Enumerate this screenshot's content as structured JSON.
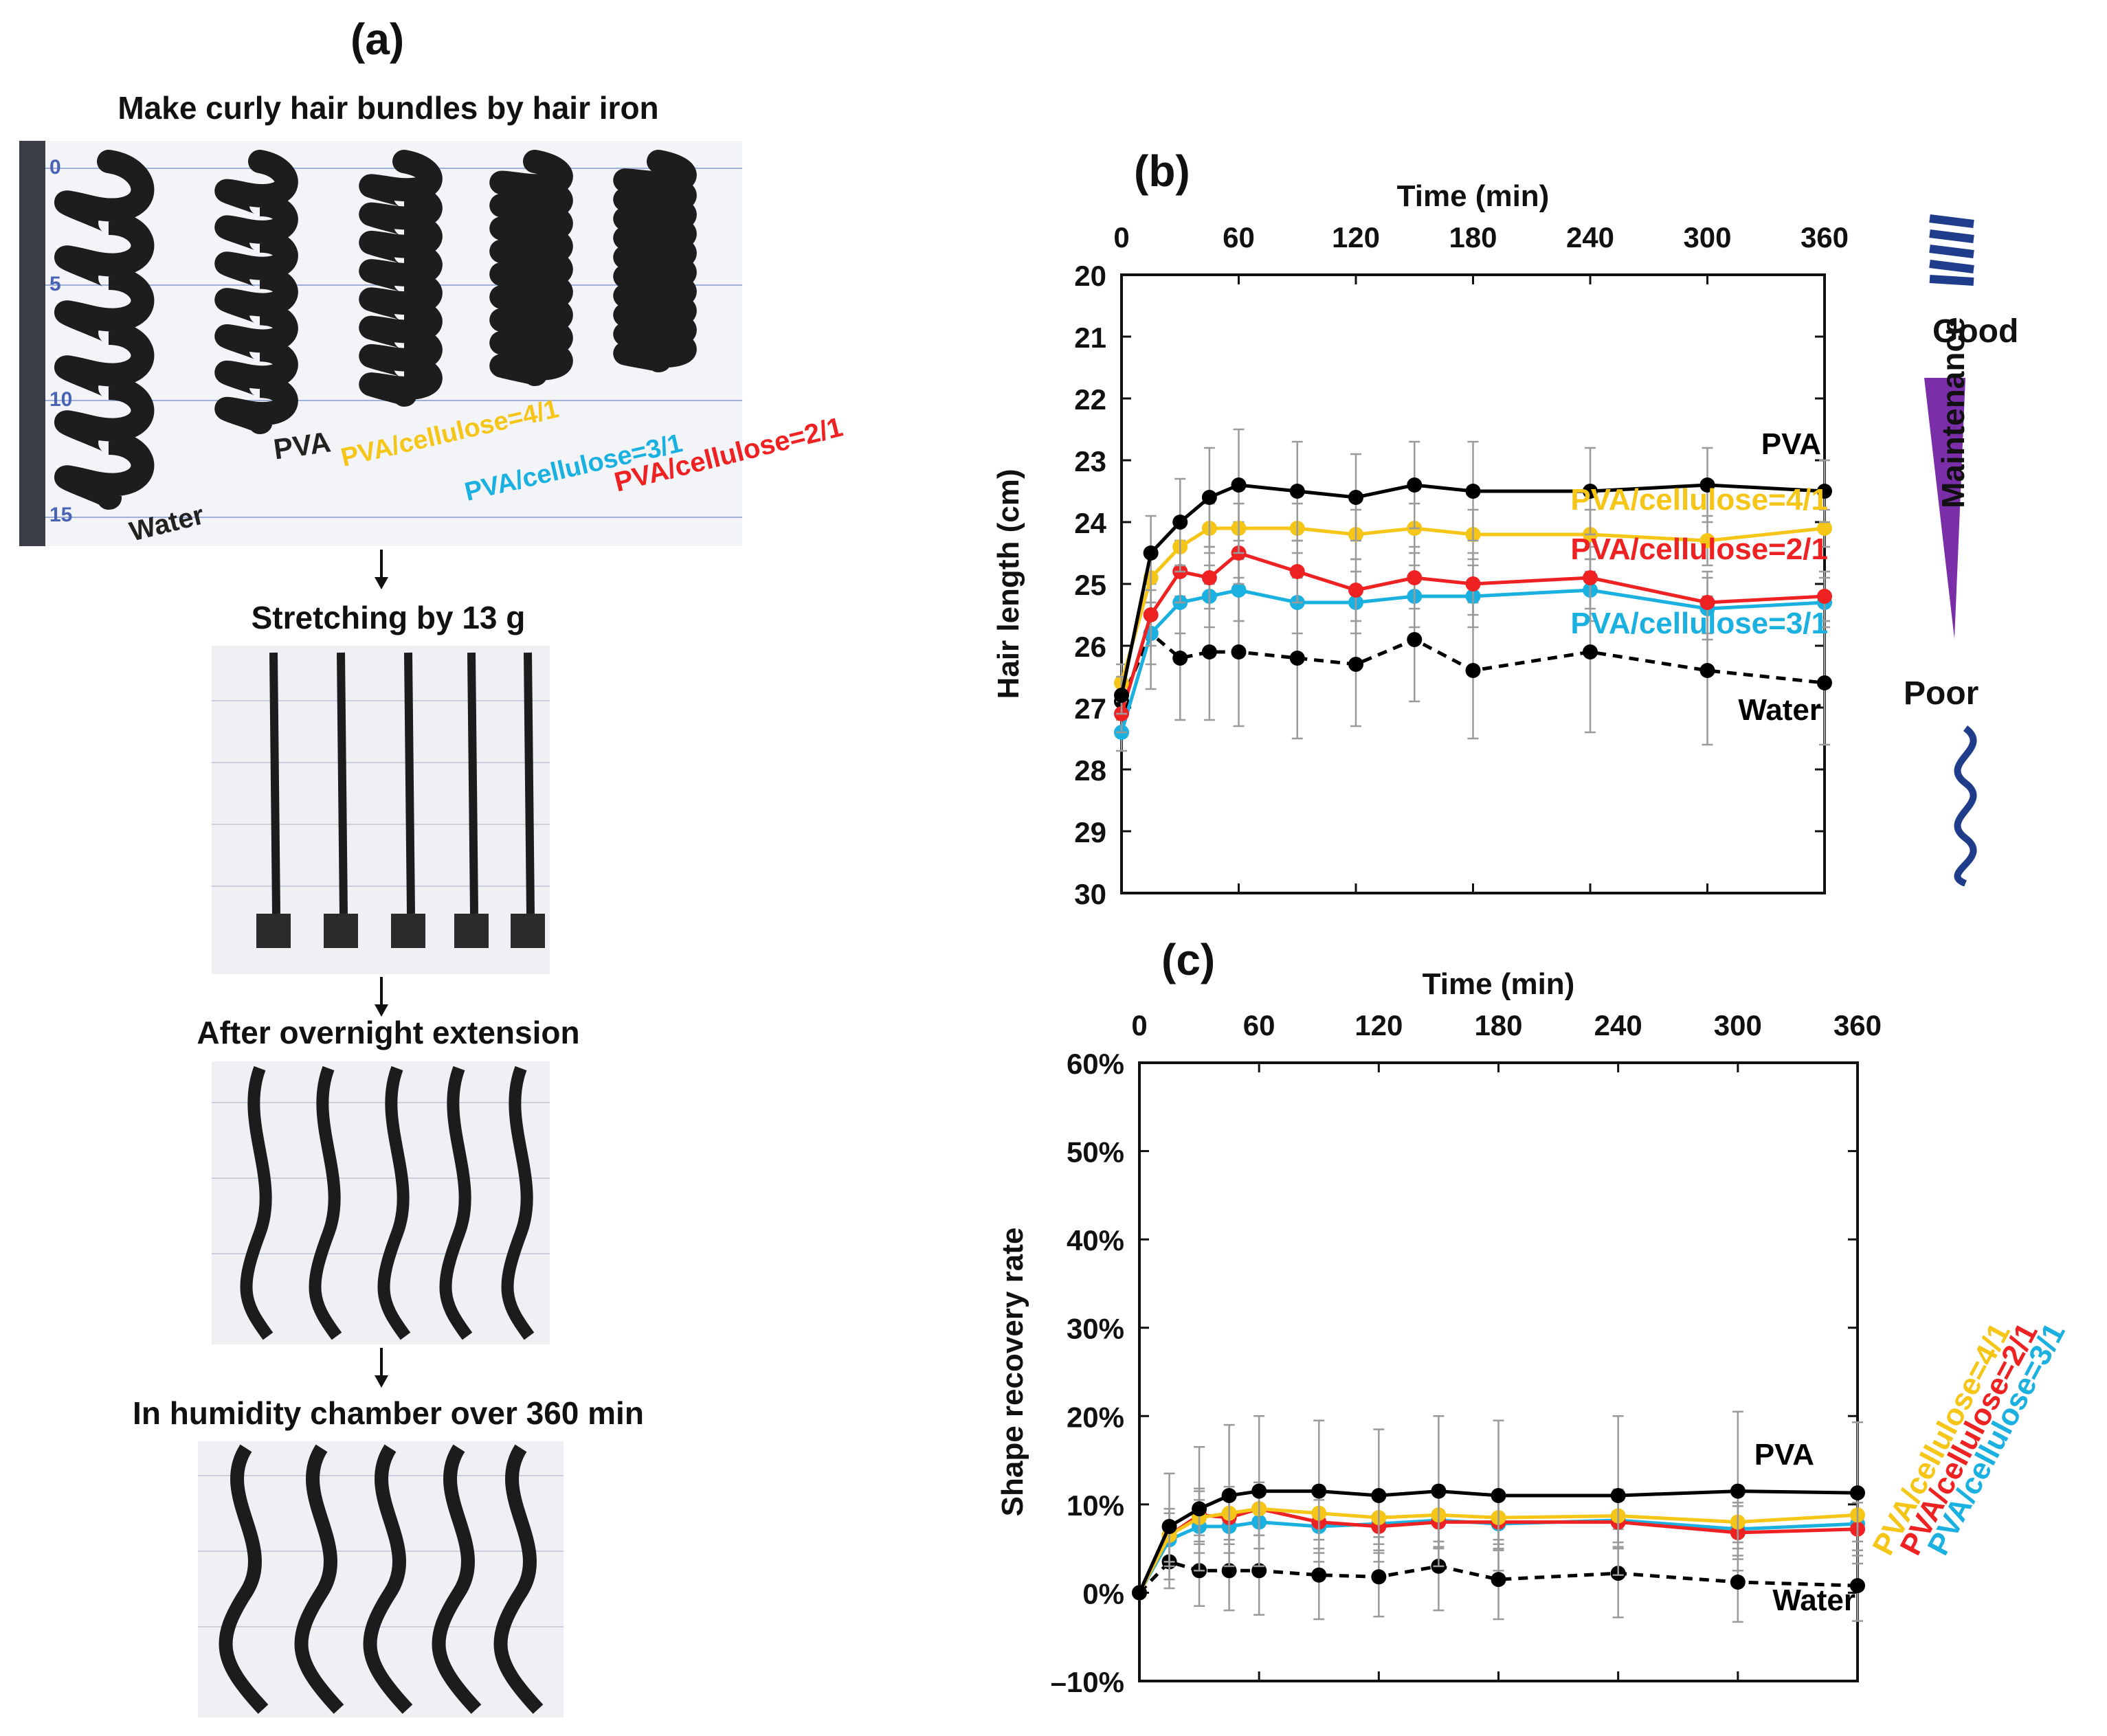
{
  "panel_a": {
    "label": "(a)",
    "steps": [
      "Make curly hair bundles by hair iron",
      "Stretching by 13 g",
      "After overnight extension",
      "In humidity chamber over 360 min"
    ],
    "ruler_marks": [
      "0",
      "5",
      "10",
      "15"
    ],
    "sample_labels": {
      "water": "Water",
      "pva": "PVA",
      "pc41": "PVA/cellulose=4/1",
      "pc31": "PVA/cellulose=3/1",
      "pc21": "PVA/cellulose=2/1"
    }
  },
  "panel_b": {
    "label": "(b)",
    "legend_scale": {
      "good": "Good",
      "maintenance": "Maintenance",
      "poor": "Poor"
    }
  },
  "panel_c": {
    "label": "(c)"
  },
  "colors": {
    "pva": "#000000",
    "water": "#000000",
    "pc41": "#f5c518",
    "pc21": "#ee2222",
    "pc31": "#1ab0e0",
    "maintenance": "#7a2ea8",
    "coil": "#1f3d8a"
  },
  "chart_data": [
    {
      "type": "line",
      "xlabel": "Time (min)",
      "ylabel": "Hair length (cm)",
      "xlim": [
        0,
        360
      ],
      "ylim": [
        20,
        30
      ],
      "y_inverted": true,
      "x_ticks": [
        0,
        60,
        120,
        180,
        240,
        300,
        360
      ],
      "y_ticks": [
        20,
        21,
        22,
        23,
        24,
        25,
        26,
        27,
        28,
        29,
        30
      ],
      "x_axis_position": "top",
      "grid": false,
      "x": [
        0,
        15,
        30,
        45,
        60,
        90,
        120,
        150,
        180,
        240,
        300,
        360
      ],
      "series": [
        {
          "name": "PVA",
          "key": "pva",
          "dash": false,
          "values": [
            26.8,
            24.5,
            24.0,
            23.6,
            23.4,
            23.5,
            23.6,
            23.4,
            23.5,
            23.5,
            23.4,
            23.5
          ],
          "error": [
            0.3,
            0.6,
            0.7,
            0.8,
            0.9,
            0.8,
            0.7,
            0.7,
            0.8,
            0.7,
            0.6,
            0.5
          ]
        },
        {
          "name": "PVA/cellulose=4/1",
          "key": "pc41",
          "dash": false,
          "values": [
            26.6,
            24.9,
            24.4,
            24.1,
            24.1,
            24.1,
            24.2,
            24.1,
            24.2,
            24.2,
            24.3,
            24.1
          ],
          "error": [
            0.3,
            0.4,
            0.4,
            0.4,
            0.4,
            0.4,
            0.4,
            0.4,
            0.4,
            0.4,
            0.4,
            0.3
          ]
        },
        {
          "name": "PVA/cellulose=2/1",
          "key": "pc21",
          "dash": false,
          "values": [
            27.1,
            25.5,
            24.8,
            24.9,
            24.5,
            24.8,
            25.1,
            24.9,
            25.0,
            24.9,
            25.3,
            25.2
          ],
          "error": [
            0.3,
            0.5,
            0.5,
            0.5,
            0.5,
            0.5,
            0.5,
            0.5,
            0.5,
            0.5,
            0.5,
            0.4
          ]
        },
        {
          "name": "PVA/cellulose=3/1",
          "key": "pc31",
          "dash": false,
          "values": [
            27.4,
            25.8,
            25.3,
            25.2,
            25.1,
            25.3,
            25.3,
            25.2,
            25.2,
            25.1,
            25.4,
            25.3
          ],
          "error": [
            0.3,
            0.5,
            0.5,
            0.5,
            0.5,
            0.5,
            0.5,
            0.5,
            0.5,
            0.5,
            0.5,
            0.4
          ]
        },
        {
          "name": "Water",
          "key": "water",
          "dash": true,
          "values": [
            26.9,
            25.8,
            26.2,
            26.1,
            26.1,
            26.2,
            26.3,
            25.9,
            26.4,
            26.1,
            26.4,
            26.6
          ],
          "error": [
            0.3,
            0.9,
            1.0,
            1.1,
            1.2,
            1.3,
            1.0,
            1.0,
            1.1,
            1.3,
            1.2,
            1.0
          ]
        }
      ],
      "annotations": [
        "PVA",
        "PVA/cellulose=4/1",
        "PVA/cellulose=2/1",
        "PVA/cellulose=3/1",
        "Water"
      ]
    },
    {
      "type": "line",
      "xlabel": "Time (min)",
      "ylabel": "Shape recovery rate",
      "xlim": [
        0,
        360
      ],
      "ylim": [
        -10,
        60
      ],
      "x_ticks": [
        0,
        60,
        120,
        180,
        240,
        300,
        360
      ],
      "y_ticks": [
        -10,
        0,
        10,
        20,
        30,
        40,
        50,
        60
      ],
      "y_tick_labels": [
        "–10%",
        "0%",
        "10%",
        "20%",
        "30%",
        "40%",
        "50%",
        "60%"
      ],
      "x_axis_position": "top",
      "grid": false,
      "x": [
        0,
        15,
        30,
        45,
        60,
        90,
        120,
        150,
        180,
        240,
        300,
        360
      ],
      "series": [
        {
          "name": "PVA",
          "key": "pva",
          "dash": false,
          "values": [
            0,
            7.5,
            9.5,
            11.0,
            11.5,
            11.5,
            11.0,
            11.5,
            11.0,
            11.0,
            11.5,
            11.3
          ],
          "error": [
            0,
            6,
            7,
            8,
            8.5,
            8,
            7.5,
            8.5,
            8.5,
            9,
            9,
            8
          ]
        },
        {
          "name": "PVA/cellulose=4/1",
          "key": "pc41",
          "dash": false,
          "values": [
            0,
            6.5,
            8.5,
            9.0,
            9.5,
            9.0,
            8.5,
            8.8,
            8.5,
            8.7,
            8.0,
            8.8
          ],
          "error": [
            0,
            3,
            3,
            3,
            3,
            3,
            3,
            3,
            3,
            3,
            3,
            3
          ]
        },
        {
          "name": "PVA/cellulose=2/1",
          "key": "pc21",
          "dash": false,
          "values": [
            0,
            6.5,
            8.8,
            8.5,
            9.5,
            8.0,
            7.5,
            8.0,
            8.0,
            8.0,
            6.8,
            7.2
          ],
          "error": [
            0,
            3,
            3,
            3,
            3,
            3,
            3,
            3,
            3,
            3,
            3,
            3
          ]
        },
        {
          "name": "PVA/cellulose=3/1",
          "key": "pc31",
          "dash": false,
          "values": [
            0,
            6.0,
            7.5,
            7.5,
            8.0,
            7.5,
            7.8,
            8.2,
            7.8,
            8.2,
            7.2,
            7.8
          ],
          "error": [
            0,
            3,
            3,
            3,
            3,
            3,
            3,
            3,
            3,
            3,
            3,
            3
          ]
        },
        {
          "name": "Water",
          "key": "water",
          "dash": true,
          "values": [
            0,
            3.5,
            2.5,
            2.5,
            2.5,
            2.0,
            1.8,
            3.0,
            1.5,
            2.2,
            1.2,
            0.8
          ],
          "error": [
            0,
            3,
            4,
            4.5,
            5,
            5,
            4.5,
            5,
            4.5,
            5,
            4.5,
            4
          ]
        }
      ],
      "annotations": [
        "PVA",
        "Water",
        "PVA/cellulose=4/1",
        "PVA/cellulose=2/1",
        "PVA/cellulose=3/1"
      ]
    }
  ]
}
